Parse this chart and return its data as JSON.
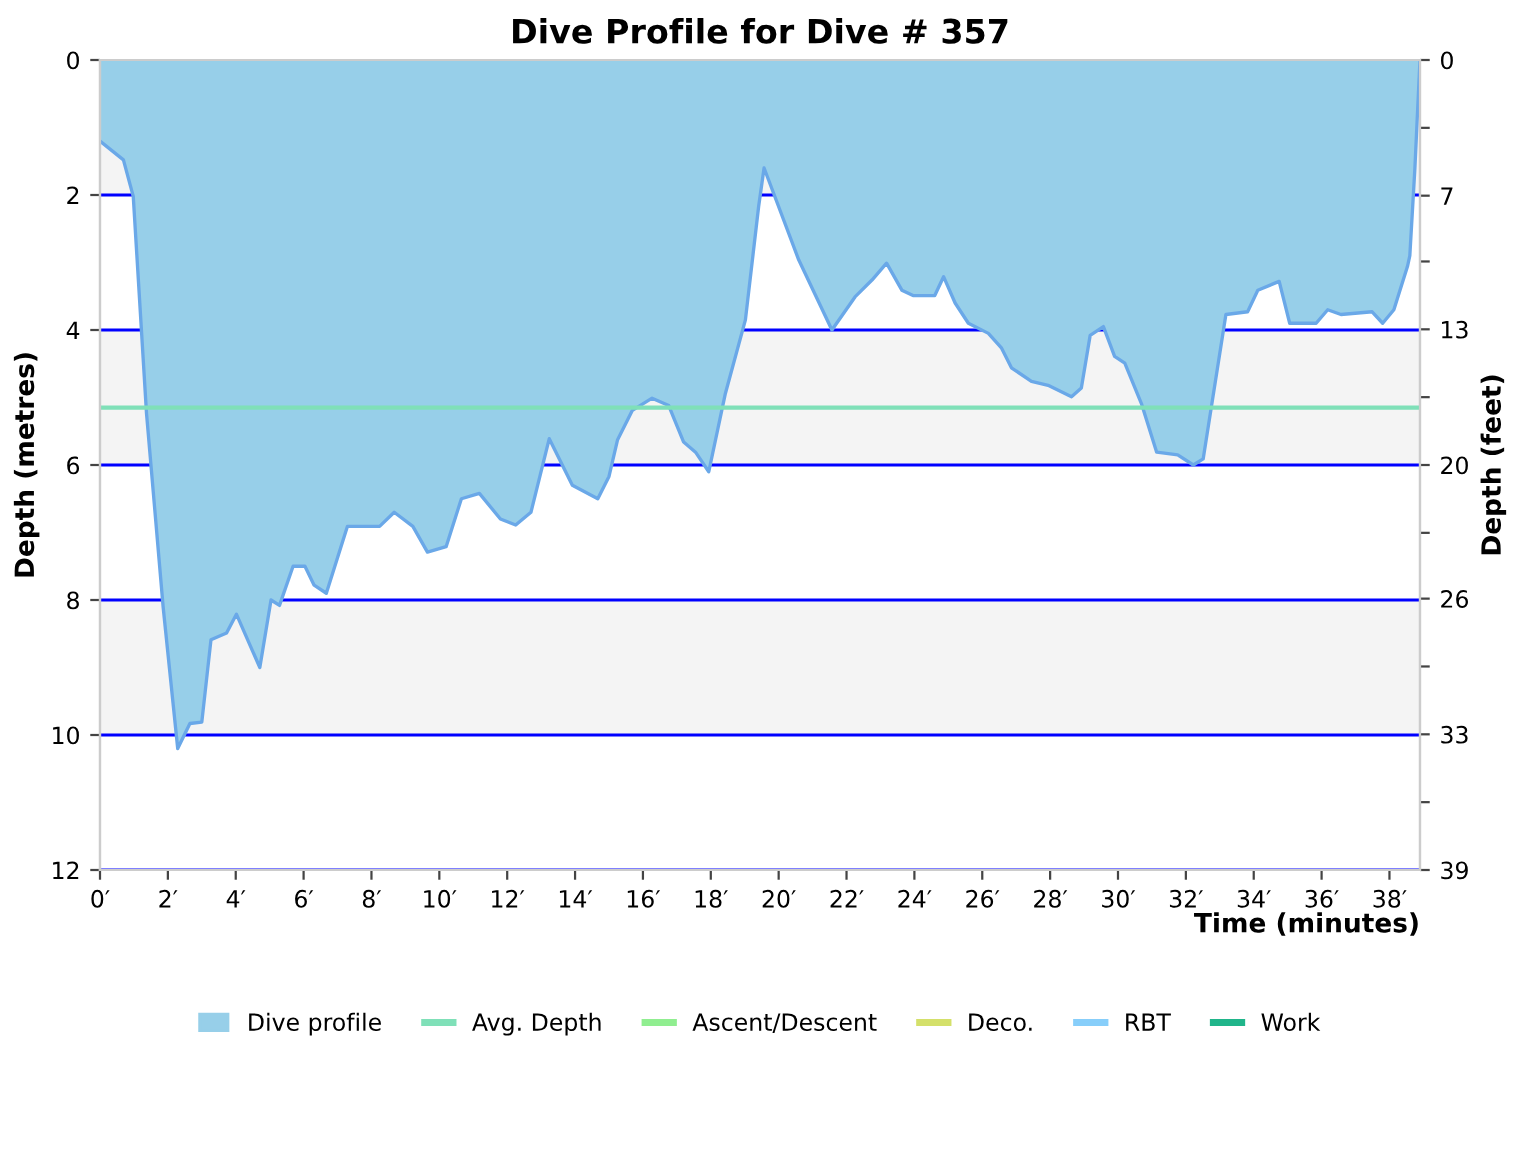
{
  "chart_data": {
    "type": "area",
    "title": "Dive Profile for Dive # 357",
    "xlabel": "Time (minutes)",
    "ylabel": "Depth (metres)",
    "y2label": "Depth (feet)",
    "xlim": [
      0,
      38.9
    ],
    "xticks": [
      {
        "value": 0,
        "label": "0′"
      },
      {
        "value": 2,
        "label": "2′"
      },
      {
        "value": 4,
        "label": "4′"
      },
      {
        "value": 6,
        "label": "6′"
      },
      {
        "value": 8,
        "label": "8′"
      },
      {
        "value": 10,
        "label": "10′"
      },
      {
        "value": 12,
        "label": "12′"
      },
      {
        "value": 14,
        "label": "14′"
      },
      {
        "value": 16,
        "label": "16′"
      },
      {
        "value": 18,
        "label": "18′"
      },
      {
        "value": 20,
        "label": "20′"
      },
      {
        "value": 22,
        "label": "22′"
      },
      {
        "value": 24,
        "label": "24′"
      },
      {
        "value": 26,
        "label": "26′"
      },
      {
        "value": 28,
        "label": "28′"
      },
      {
        "value": 30,
        "label": "30′"
      },
      {
        "value": 32,
        "label": "32′"
      },
      {
        "value": 34,
        "label": "34′"
      },
      {
        "value": 36,
        "label": "36′"
      },
      {
        "value": 38,
        "label": "38′"
      }
    ],
    "ylim": [
      12,
      0
    ],
    "yticks": [
      0,
      2,
      4,
      6,
      8,
      10,
      12
    ],
    "y2lim": [
      39.4,
      0
    ],
    "y2ticks": [
      0,
      {
        "value": 3.3,
        "label": null
      },
      {
        "value": 6.6,
        "label": "7"
      },
      {
        "value": 9.8,
        "label": null
      },
      {
        "value": 13.1,
        "label": "13"
      },
      {
        "value": 16.4,
        "label": null
      },
      {
        "value": 19.7,
        "label": "20"
      },
      {
        "value": 23.0,
        "label": null
      },
      {
        "value": 26.2,
        "label": "26"
      },
      {
        "value": 29.5,
        "label": null
      },
      {
        "value": 32.8,
        "label": "33"
      },
      {
        "value": 36.1,
        "label": null
      },
      {
        "value": 39.4,
        "label": "39"
      }
    ],
    "grid": "y",
    "legend": "bottom",
    "bands": [
      {
        "axis": "y",
        "from": 0,
        "to": 2,
        "color": "#f4f4f4"
      },
      {
        "axis": "y",
        "from": 4,
        "to": 6,
        "color": "#f4f4f4"
      },
      {
        "axis": "y",
        "from": 8,
        "to": 10,
        "color": "#f4f4f4"
      }
    ],
    "ref_lines": [
      {
        "axis": "y",
        "value": 5.15,
        "label": "Avg. Depth",
        "color": "#7fe0b8"
      }
    ],
    "series": [
      {
        "name": "Dive profile",
        "color": "#97cfe9",
        "x": [
          0,
          0.69,
          0.98,
          1.37,
          1.86,
          2.29,
          2.65,
          3.0,
          3.27,
          3.73,
          4.02,
          4.71,
          5.04,
          5.29,
          5.69,
          6.04,
          6.31,
          6.67,
          7.29,
          8.24,
          8.67,
          9.22,
          9.65,
          10.2,
          10.65,
          11.18,
          11.8,
          12.25,
          12.7,
          13.24,
          13.92,
          14.67,
          15.0,
          15.25,
          15.69,
          16.27,
          16.76,
          17.2,
          17.55,
          17.94,
          18.43,
          19.02,
          19.41,
          19.57,
          20.59,
          21.57,
          22.25,
          22.75,
          23.18,
          23.63,
          23.96,
          24.6,
          24.86,
          25.2,
          25.59,
          26.18,
          26.57,
          26.86,
          27.45,
          27.94,
          28.63,
          28.92,
          29.18,
          29.57,
          29.9,
          30.2,
          30.69,
          31.14,
          31.76,
          32.22,
          32.51,
          33.18,
          33.82,
          34.12,
          34.75,
          35.06,
          35.84,
          36.18,
          36.57,
          37.49,
          37.8,
          38.13,
          38.53,
          38.6,
          38.75,
          38.9
        ],
        "values": [
          1.2,
          1.48,
          2.02,
          5.23,
          8.1,
          10.2,
          9.83,
          9.81,
          8.59,
          8.49,
          8.21,
          9.0,
          8.0,
          8.08,
          7.5,
          7.5,
          7.78,
          7.9,
          6.91,
          6.91,
          6.7,
          6.91,
          7.29,
          7.21,
          6.5,
          6.42,
          6.8,
          6.89,
          6.7,
          5.61,
          6.3,
          6.5,
          6.17,
          5.63,
          5.19,
          5.01,
          5.12,
          5.66,
          5.81,
          6.1,
          4.94,
          3.85,
          2.17,
          1.6,
          2.96,
          4.0,
          3.51,
          3.26,
          3.01,
          3.41,
          3.49,
          3.49,
          3.21,
          3.6,
          3.9,
          4.05,
          4.27,
          4.56,
          4.76,
          4.82,
          4.99,
          4.86,
          4.08,
          3.95,
          4.39,
          4.49,
          5.09,
          5.81,
          5.85,
          6.0,
          5.91,
          3.77,
          3.73,
          3.41,
          3.28,
          3.9,
          3.9,
          3.7,
          3.77,
          3.73,
          3.9,
          3.7,
          3.06,
          2.9,
          1.6,
          0
        ]
      },
      {
        "name": "Ascent/Descent",
        "type": "line",
        "color": "#90ee90"
      },
      {
        "name": "Deco.",
        "type": "line",
        "color": "#d4e06a"
      },
      {
        "name": "RBT",
        "type": "line",
        "color": "#87cefa"
      },
      {
        "name": "Work",
        "type": "line",
        "color": "#20b58a"
      }
    ]
  }
}
